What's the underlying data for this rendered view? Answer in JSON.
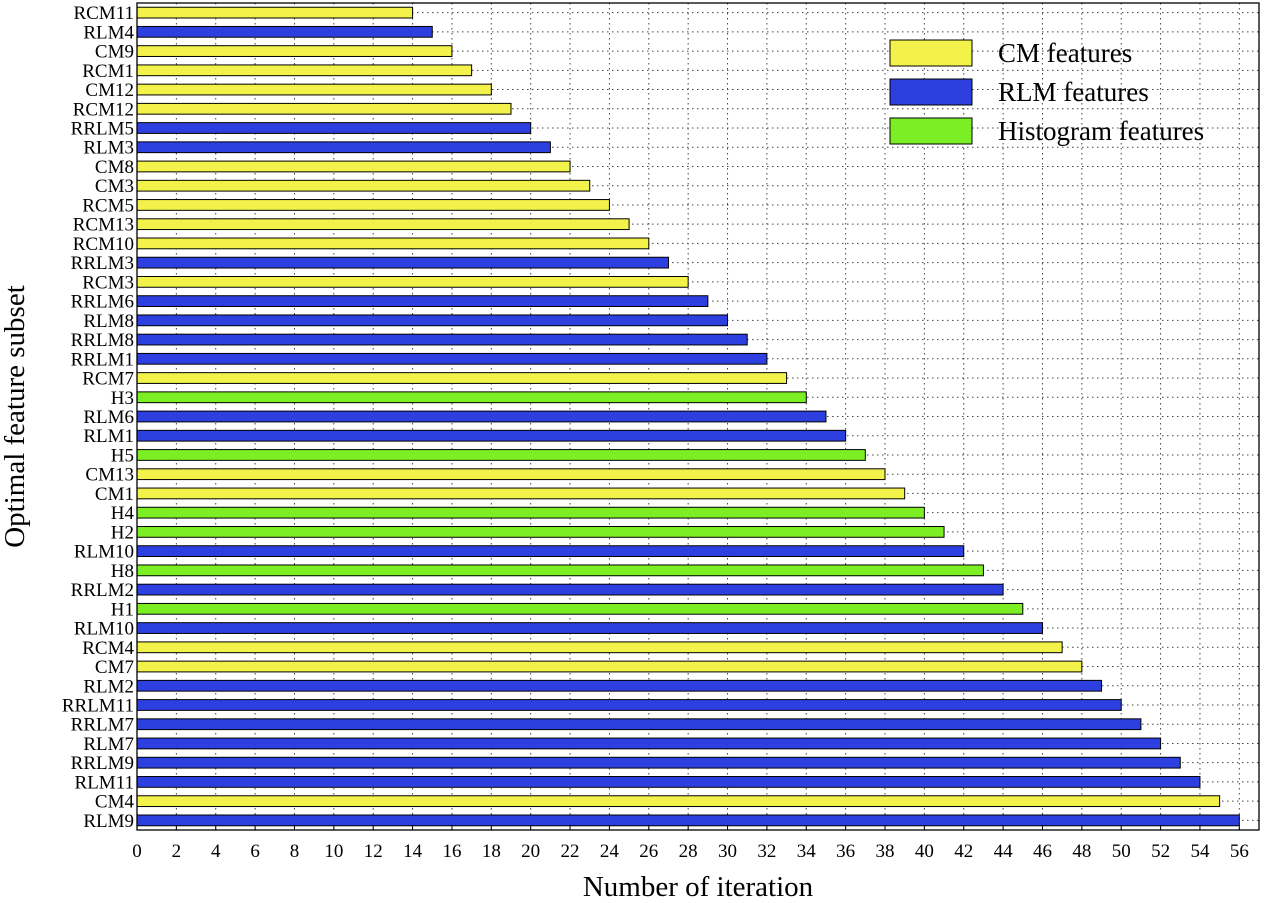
{
  "chart_data": {
    "type": "bar",
    "orientation": "horizontal",
    "xlabel": "Number of iteration",
    "ylabel": "Optimal feature subset",
    "xlim": [
      0,
      57
    ],
    "xticks": [
      0,
      2,
      4,
      6,
      8,
      10,
      12,
      14,
      16,
      18,
      20,
      22,
      24,
      26,
      28,
      30,
      32,
      34,
      36,
      38,
      40,
      42,
      44,
      46,
      48,
      50,
      52,
      54,
      56
    ],
    "grid": true,
    "legend_position": "top-right",
    "legend": [
      {
        "key": "CM",
        "label": "CM features",
        "color": "#f2f24a"
      },
      {
        "key": "RLM",
        "label": "RLM features",
        "color": "#2e3fe0"
      },
      {
        "key": "H",
        "label": "Histogram features",
        "color": "#7bef23"
      }
    ],
    "bars": [
      {
        "label": "RCM11",
        "value": 14,
        "group": "CM"
      },
      {
        "label": "RLM4",
        "value": 15,
        "group": "RLM"
      },
      {
        "label": "CM9",
        "value": 16,
        "group": "CM"
      },
      {
        "label": "RCM1",
        "value": 17,
        "group": "CM"
      },
      {
        "label": "CM12",
        "value": 18,
        "group": "CM"
      },
      {
        "label": "RCM12",
        "value": 19,
        "group": "CM"
      },
      {
        "label": "RRLM5",
        "value": 20,
        "group": "RLM"
      },
      {
        "label": "RLM3",
        "value": 21,
        "group": "RLM"
      },
      {
        "label": "CM8",
        "value": 22,
        "group": "CM"
      },
      {
        "label": "CM3",
        "value": 23,
        "group": "CM"
      },
      {
        "label": "RCM5",
        "value": 24,
        "group": "CM"
      },
      {
        "label": "RCM13",
        "value": 25,
        "group": "CM"
      },
      {
        "label": "RCM10",
        "value": 26,
        "group": "CM"
      },
      {
        "label": "RRLM3",
        "value": 27,
        "group": "RLM"
      },
      {
        "label": "RCM3",
        "value": 28,
        "group": "CM"
      },
      {
        "label": "RRLM6",
        "value": 29,
        "group": "RLM"
      },
      {
        "label": "RLM8",
        "value": 30,
        "group": "RLM"
      },
      {
        "label": "RRLM8",
        "value": 31,
        "group": "RLM"
      },
      {
        "label": "RRLM1",
        "value": 32,
        "group": "RLM"
      },
      {
        "label": "RCM7",
        "value": 33,
        "group": "CM"
      },
      {
        "label": "H3",
        "value": 34,
        "group": "H"
      },
      {
        "label": "RLM6",
        "value": 35,
        "group": "RLM"
      },
      {
        "label": "RLM1",
        "value": 36,
        "group": "RLM"
      },
      {
        "label": "H5",
        "value": 37,
        "group": "H"
      },
      {
        "label": "CM13",
        "value": 38,
        "group": "CM"
      },
      {
        "label": "CM1",
        "value": 39,
        "group": "CM"
      },
      {
        "label": "H4",
        "value": 40,
        "group": "H"
      },
      {
        "label": "H2",
        "value": 41,
        "group": "H"
      },
      {
        "label": "RLM10",
        "value": 42,
        "group": "RLM"
      },
      {
        "label": "H8",
        "value": 43,
        "group": "H"
      },
      {
        "label": "RRLM2",
        "value": 44,
        "group": "RLM"
      },
      {
        "label": "H1",
        "value": 45,
        "group": "H"
      },
      {
        "label": "RLM10",
        "value": 46,
        "group": "RLM"
      },
      {
        "label": "RCM4",
        "value": 47,
        "group": "CM"
      },
      {
        "label": "CM7",
        "value": 48,
        "group": "CM"
      },
      {
        "label": "RLM2",
        "value": 49,
        "group": "RLM"
      },
      {
        "label": "RRLM11",
        "value": 50,
        "group": "RLM"
      },
      {
        "label": "RRLM7",
        "value": 51,
        "group": "RLM"
      },
      {
        "label": "RLM7",
        "value": 52,
        "group": "RLM"
      },
      {
        "label": "RRLM9",
        "value": 53,
        "group": "RLM"
      },
      {
        "label": "RLM11",
        "value": 54,
        "group": "RLM"
      },
      {
        "label": "CM4",
        "value": 55,
        "group": "CM"
      },
      {
        "label": "RLM9",
        "value": 56,
        "group": "RLM"
      }
    ]
  }
}
